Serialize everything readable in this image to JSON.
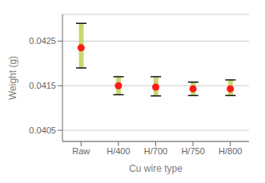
{
  "chart_data": {
    "type": "scatter",
    "xlabel": "Cu wire type",
    "ylabel": "Weight (g)",
    "categories": [
      "Raw",
      "H/400",
      "H/700",
      "H/750",
      "H/800"
    ],
    "values": [
      0.04235,
      0.0415,
      0.04147,
      0.04143,
      0.04143
    ],
    "error_upper": [
      0.00055,
      0.0002,
      0.00023,
      0.00015,
      0.0002
    ],
    "error_lower": [
      0.00045,
      0.0002,
      0.0002,
      0.00015,
      0.00015
    ],
    "color": "#ff1a1a",
    "error_color": "#c8d870",
    "cap_color": "#111111",
    "ylim": [
      0.04025,
      0.0431
    ],
    "yticks": [
      0.0405,
      0.0415,
      0.0425
    ],
    "grid": true
  }
}
